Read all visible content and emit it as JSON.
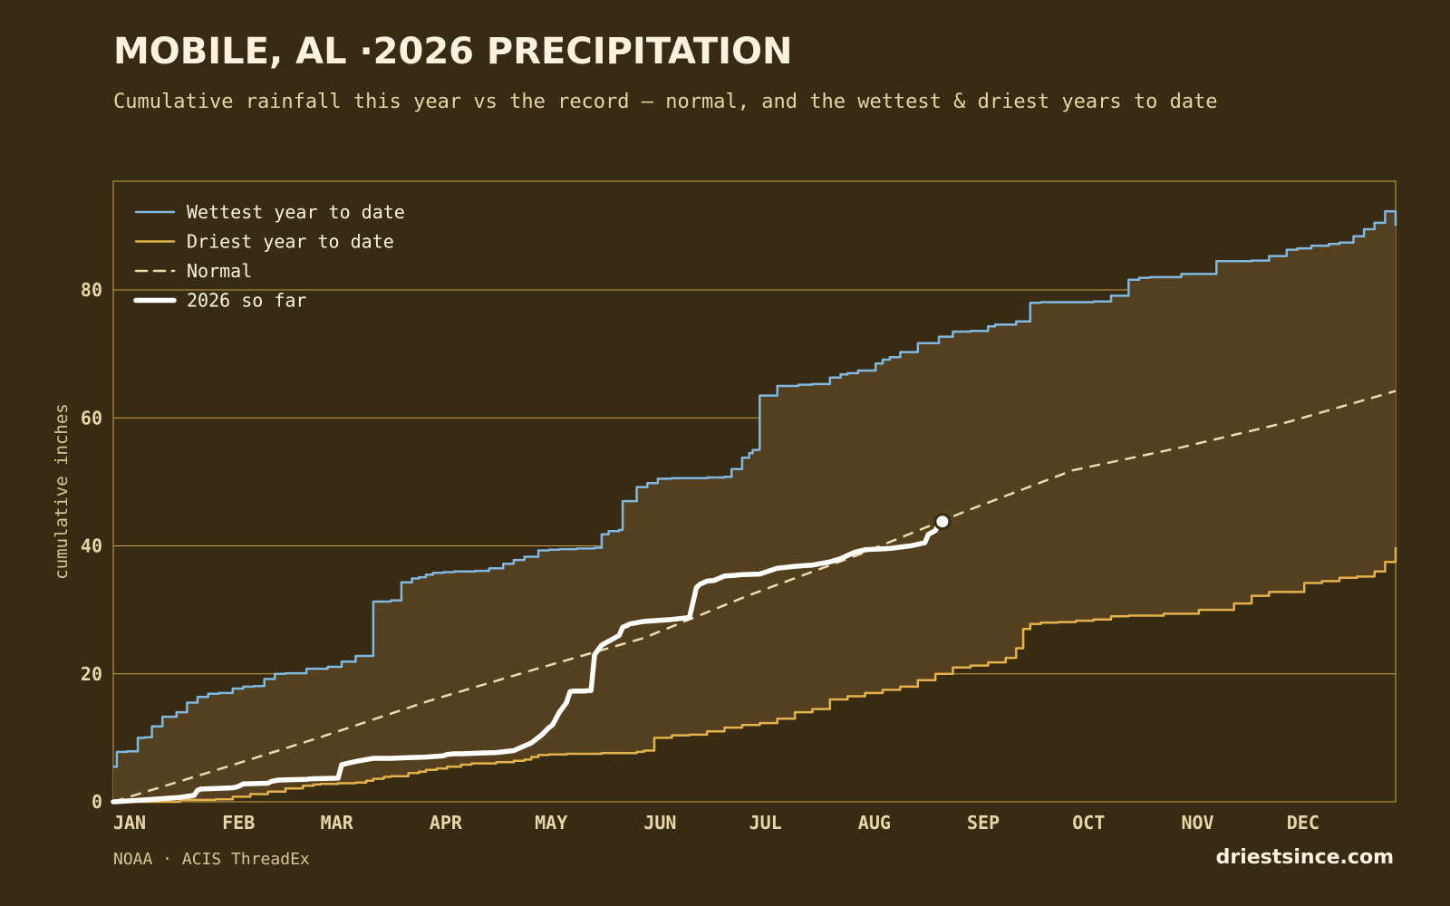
{
  "header": {
    "title": "MOBILE, AL ·2026 PRECIPITATION",
    "subtitle": "Cumulative rainfall this year vs the record — normal, and the wettest & driest years to date"
  },
  "footer": {
    "source": "NOAA · ACIS ThreadEx",
    "brand": "driestsince.com"
  },
  "colors": {
    "background": "#382b13",
    "band_fill": "#54401e",
    "grid": "#c9a34a",
    "wettest": "#7fb8e0",
    "driest": "#e3b24c",
    "normal": "#ecdcb0",
    "current": "#ffffff"
  },
  "chart_data": {
    "type": "line",
    "title": "MOBILE, AL ·2026 PRECIPITATION",
    "subtitle": "Cumulative rainfall this year vs the record — normal, and the wettest & driest years to date",
    "xlabel": "",
    "ylabel": "cumulative inches",
    "x_unit": "day of year",
    "xlim": [
      1,
      366
    ],
    "ylim": [
      0,
      97
    ],
    "y_ticks": [
      0,
      20,
      40,
      60,
      80
    ],
    "x_tick_labels": [
      "JAN",
      "FEB",
      "MAR",
      "APR",
      "MAY",
      "JUN",
      "JUL",
      "AUG",
      "SEP",
      "OCT",
      "NOV",
      "DEC"
    ],
    "x_tick_days": [
      1,
      32,
      60,
      91,
      121,
      152,
      182,
      213,
      244,
      274,
      305,
      335
    ],
    "grid": "horizontal",
    "legend_position": "top-left",
    "band": "between wettest and driest",
    "series": [
      {
        "name": "Wettest year to date",
        "style": "solid",
        "x": [
          1,
          2,
          5,
          8,
          10,
          12,
          15,
          19,
          22,
          25,
          28,
          31,
          35,
          38,
          41,
          44,
          47,
          50,
          56,
          62,
          66,
          70,
          75,
          80,
          83,
          86,
          88,
          90,
          92,
          95,
          98,
          104,
          108,
          112,
          115,
          118,
          122,
          125,
          128,
          133,
          138,
          140,
          142,
          145,
          146,
          150,
          153,
          156,
          160,
          165,
          170,
          175,
          177,
          180,
          182,
          183,
          185,
          190,
          196,
          200,
          205,
          208,
          210,
          213,
          218,
          220,
          222,
          225,
          230,
          236,
          240,
          245,
          250,
          252,
          258,
          262,
          265,
          275,
          280,
          285,
          290,
          293,
          296,
          305,
          315,
          325,
          330,
          335,
          338,
          342,
          347,
          350,
          354,
          357,
          360,
          363,
          366
        ],
        "y": [
          5.5,
          7.8,
          7.9,
          10.0,
          10.1,
          11.8,
          13.3,
          14.0,
          15.5,
          16.4,
          16.9,
          17.0,
          17.7,
          18.0,
          18.1,
          19.2,
          20.0,
          20.1,
          20.8,
          21.1,
          21.9,
          22.8,
          31.3,
          31.5,
          34.3,
          34.9,
          35.1,
          35.5,
          35.8,
          35.9,
          36.0,
          36.1,
          36.5,
          37.2,
          37.8,
          38.3,
          39.3,
          39.4,
          39.5,
          39.6,
          39.7,
          41.8,
          42.3,
          42.5,
          47.0,
          49.2,
          49.8,
          50.5,
          50.6,
          50.6,
          50.7,
          50.8,
          52.0,
          53.8,
          54.5,
          55.0,
          63.5,
          65.0,
          65.2,
          65.3,
          66.3,
          66.8,
          67.0,
          67.4,
          68.5,
          69.1,
          69.5,
          70.3,
          71.7,
          72.7,
          73.5,
          73.6,
          74.3,
          74.6,
          75.1,
          78.0,
          78.1,
          78.1,
          78.2,
          79.1,
          81.6,
          81.9,
          82.0,
          82.5,
          84.5,
          84.6,
          85.3,
          86.3,
          86.5,
          86.9,
          87.2,
          87.4,
          88.4,
          89.5,
          90.5,
          92.3,
          90.0
        ]
      },
      {
        "name": "Driest year to date",
        "style": "solid",
        "x": [
          1,
          10,
          20,
          30,
          35,
          40,
          45,
          50,
          55,
          58,
          60,
          62,
          65,
          70,
          73,
          75,
          78,
          80,
          85,
          88,
          90,
          93,
          96,
          100,
          103,
          106,
          110,
          115,
          118,
          120,
          122,
          125,
          130,
          135,
          140,
          145,
          150,
          152,
          155,
          160,
          165,
          170,
          175,
          180,
          185,
          190,
          195,
          200,
          205,
          210,
          215,
          220,
          225,
          230,
          235,
          240,
          245,
          250,
          255,
          258,
          260,
          262,
          265,
          270,
          275,
          280,
          285,
          290,
          300,
          310,
          320,
          325,
          330,
          340,
          345,
          350,
          355,
          360,
          363,
          366
        ],
        "y": [
          0,
          0,
          0.3,
          0.4,
          0.8,
          1.2,
          1.6,
          2.1,
          2.5,
          2.7,
          2.8,
          2.8,
          2.9,
          3.0,
          3.3,
          3.6,
          3.9,
          4.0,
          4.5,
          4.7,
          5.0,
          5.2,
          5.5,
          5.8,
          6.0,
          6.0,
          6.2,
          6.4,
          6.6,
          7.0,
          7.3,
          7.4,
          7.5,
          7.5,
          7.6,
          7.6,
          7.8,
          8.0,
          10.0,
          10.4,
          10.5,
          11.0,
          11.6,
          12.0,
          12.3,
          13.0,
          14.0,
          14.5,
          16.0,
          16.5,
          17.0,
          17.5,
          18.0,
          19.0,
          20.0,
          21.0,
          21.3,
          21.8,
          22.5,
          24.0,
          27.0,
          27.8,
          28.0,
          28.1,
          28.3,
          28.5,
          29.0,
          29.1,
          29.4,
          30.0,
          31.0,
          32.2,
          32.8,
          34.2,
          34.5,
          35.0,
          35.2,
          36.0,
          37.5,
          39.8
        ]
      },
      {
        "name": "Normal",
        "style": "dashed",
        "x": [
          1,
          30,
          60,
          91,
          121,
          152,
          182,
          213,
          244,
          274,
          305,
          335,
          366
        ],
        "y": [
          0,
          4.9,
          10.1,
          15.8,
          20.7,
          25.6,
          32.3,
          38.6,
          45.5,
          51.8,
          55.4,
          59.3,
          64.2
        ]
      },
      {
        "name": "2026 so far",
        "style": "thick",
        "x": [
          1,
          10,
          15,
          20,
          24,
          25,
          26,
          35,
          36,
          37,
          38,
          45,
          46,
          48,
          55,
          56,
          57,
          65,
          66,
          70,
          72,
          75,
          80,
          85,
          90,
          95,
          96,
          98,
          100,
          105,
          110,
          115,
          120,
          123,
          125,
          126,
          128,
          130,
          131,
          132,
          133,
          135,
          137,
          138,
          140,
          145,
          146,
          147,
          148,
          150,
          151,
          152,
          155,
          160,
          165,
          167,
          168,
          170,
          172,
          175,
          178,
          180,
          185,
          190,
          195,
          200,
          205,
          208,
          210,
          212,
          215,
          218,
          222,
          225,
          228,
          232,
          233,
          235,
          236,
          237
        ],
        "y": [
          0,
          0.3,
          0.5,
          0.7,
          1.0,
          1.8,
          2.0,
          2.2,
          2.3,
          2.5,
          2.8,
          2.9,
          3.2,
          3.4,
          3.5,
          3.5,
          3.6,
          3.7,
          5.8,
          6.3,
          6.5,
          6.8,
          6.8,
          6.9,
          7.0,
          7.2,
          7.4,
          7.5,
          7.5,
          7.6,
          7.7,
          8.0,
          9.2,
          10.5,
          11.6,
          12.0,
          14.0,
          15.5,
          17.2,
          17.3,
          17.3,
          17.3,
          17.4,
          23.0,
          24.5,
          26.0,
          27.3,
          27.5,
          27.8,
          28.0,
          28.1,
          28.2,
          28.3,
          28.5,
          28.8,
          33.5,
          34.0,
          34.5,
          34.6,
          35.3,
          35.4,
          35.5,
          35.6,
          36.5,
          36.8,
          37.0,
          37.5,
          38.0,
          38.5,
          39.0,
          39.4,
          39.5,
          39.6,
          39.8,
          40.0,
          40.5,
          41.8,
          42.4,
          43.6,
          43.8
        ]
      }
    ],
    "current_marker": {
      "x": 237,
      "y": 43.8
    },
    "legend": [
      "Wettest year to date",
      "Driest year to date",
      "Normal",
      "2026 so far"
    ]
  }
}
